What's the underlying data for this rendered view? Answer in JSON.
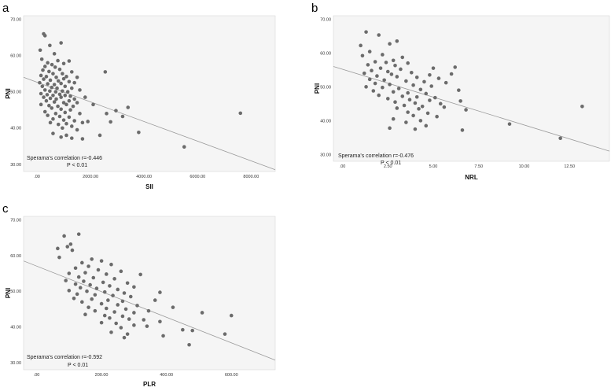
{
  "chart_data": [
    {
      "type": "scatter",
      "panel": "a",
      "xlabel": "SII",
      "ylabel": "PNI",
      "xlim": [
        -500,
        8900
      ],
      "ylim": [
        28,
        71
      ],
      "xticks": [
        0,
        2000,
        4000,
        6000,
        8000
      ],
      "xtick_labels": [
        ".00",
        "2000.00",
        "4000.00",
        "6000.00",
        "8000.00"
      ],
      "yticks": [
        30,
        40,
        50,
        60,
        70
      ],
      "ytick_labels": [
        "30.00",
        "40.00",
        "50.00",
        "60.00",
        "70.00"
      ],
      "fit_line": [
        [
          -500,
          54.0
        ],
        [
          8900,
          28.5
        ]
      ],
      "annotation": [
        "Sperama's correlation r=-0.446",
        "P < 0.01"
      ],
      "points": [
        [
          250,
          66
        ],
        [
          300,
          65.5
        ],
        [
          900,
          63.5
        ],
        [
          480,
          62.8
        ],
        [
          120,
          61.5
        ],
        [
          650,
          60.5
        ],
        [
          180,
          59
        ],
        [
          780,
          58.6
        ],
        [
          1200,
          58.5
        ],
        [
          400,
          58
        ],
        [
          560,
          57.5
        ],
        [
          1000,
          57.8
        ],
        [
          300,
          57
        ],
        [
          680,
          56.8
        ],
        [
          850,
          56.2
        ],
        [
          220,
          56
        ],
        [
          450,
          55.6
        ],
        [
          1300,
          55.5
        ],
        [
          2550,
          55.5
        ],
        [
          600,
          55
        ],
        [
          950,
          55
        ],
        [
          150,
          54.5
        ],
        [
          350,
          54.2
        ],
        [
          720,
          54
        ],
        [
          1100,
          54.2
        ],
        [
          1500,
          54
        ],
        [
          250,
          53.5
        ],
        [
          500,
          53.2
        ],
        [
          800,
          53
        ],
        [
          1000,
          53.6
        ],
        [
          1200,
          52.8
        ],
        [
          100,
          52.5
        ],
        [
          400,
          52.2
        ],
        [
          650,
          52
        ],
        [
          900,
          52.3
        ],
        [
          1400,
          52.5
        ],
        [
          200,
          51.5
        ],
        [
          550,
          51.2
        ],
        [
          750,
          51
        ],
        [
          1050,
          51.5
        ],
        [
          1300,
          51
        ],
        [
          300,
          50.5
        ],
        [
          480,
          50.2
        ],
        [
          700,
          50
        ],
        [
          950,
          50.2
        ],
        [
          1150,
          50
        ],
        [
          1600,
          50.5
        ],
        [
          150,
          49.5
        ],
        [
          380,
          49.2
        ],
        [
          600,
          49
        ],
        [
          850,
          49.3
        ],
        [
          1050,
          49
        ],
        [
          1250,
          48.8
        ],
        [
          250,
          48.5
        ],
        [
          500,
          48.2
        ],
        [
          720,
          48
        ],
        [
          900,
          48.5
        ],
        [
          1400,
          48
        ],
        [
          1800,
          48.5
        ],
        [
          350,
          47.5
        ],
        [
          650,
          47.2
        ],
        [
          1000,
          47
        ],
        [
          1200,
          47.5
        ],
        [
          1500,
          47
        ],
        [
          150,
          46.5
        ],
        [
          450,
          46.2
        ],
        [
          780,
          46
        ],
        [
          1100,
          46.5
        ],
        [
          1350,
          46
        ],
        [
          2100,
          46.5
        ],
        [
          3400,
          45.7
        ],
        [
          550,
          45.5
        ],
        [
          900,
          45.2
        ],
        [
          1250,
          45
        ],
        [
          2950,
          44.8
        ],
        [
          7600,
          44.1
        ],
        [
          300,
          44.5
        ],
        [
          700,
          44
        ],
        [
          1050,
          44.3
        ],
        [
          1600,
          44
        ],
        [
          2600,
          44
        ],
        [
          400,
          43.5
        ],
        [
          850,
          43.2
        ],
        [
          1200,
          43
        ],
        [
          3200,
          43.2
        ],
        [
          600,
          42.5
        ],
        [
          1000,
          42.2
        ],
        [
          1400,
          42
        ],
        [
          1900,
          41.8
        ],
        [
          2750,
          41.7
        ],
        [
          500,
          41.5
        ],
        [
          800,
          41
        ],
        [
          1100,
          41.2
        ],
        [
          1700,
          41.5
        ],
        [
          1300,
          40.5
        ],
        [
          950,
          40
        ],
        [
          1500,
          39.5
        ],
        [
          3800,
          38.8
        ],
        [
          600,
          38.5
        ],
        [
          1100,
          38
        ],
        [
          2350,
          38
        ],
        [
          900,
          37.5
        ],
        [
          1300,
          37.2
        ],
        [
          1700,
          37
        ],
        [
          5500,
          34.8
        ]
      ]
    },
    {
      "type": "scatter",
      "panel": "b",
      "xlabel": "NRL",
      "ylabel": "PNI",
      "xlim": [
        -0.5,
        14.7
      ],
      "ylim": [
        28,
        71
      ],
      "xticks": [
        0,
        2.5,
        5,
        7.5,
        10,
        12.5
      ],
      "xtick_labels": [
        ".00",
        "2.50",
        "5.00",
        "7.50",
        "10.00",
        "12.50"
      ],
      "yticks": [
        30,
        40,
        50,
        60,
        70
      ],
      "ytick_labels": [
        "30.00",
        "40.00",
        "50.00",
        "60.00",
        "70.00"
      ],
      "fit_line": [
        [
          -0.5,
          56.0
        ],
        [
          14.7,
          31.0
        ]
      ],
      "annotation": [
        "Sperama's correlation r=-0.476",
        "P < 0.01"
      ],
      "points": [
        [
          1.3,
          66.2
        ],
        [
          2.0,
          65.3
        ],
        [
          3.0,
          63.5
        ],
        [
          2.6,
          62.7
        ],
        [
          1.0,
          62.2
        ],
        [
          1.5,
          60.4
        ],
        [
          2.2,
          59.5
        ],
        [
          3.3,
          58.7
        ],
        [
          1.1,
          59.2
        ],
        [
          2.8,
          57.8
        ],
        [
          1.8,
          57.4
        ],
        [
          2.4,
          57.2
        ],
        [
          3.6,
          57
        ],
        [
          1.4,
          56.5
        ],
        [
          2.9,
          56.3
        ],
        [
          6.2,
          55.8
        ],
        [
          2.1,
          55.5
        ],
        [
          3.2,
          55.2
        ],
        [
          5.0,
          55.5
        ],
        [
          1.6,
          54.8
        ],
        [
          2.5,
          54.5
        ],
        [
          3.8,
          54.2
        ],
        [
          1.2,
          54
        ],
        [
          2.7,
          53.7
        ],
        [
          4.8,
          53.5
        ],
        [
          6.0,
          53.8
        ],
        [
          1.9,
          53.2
        ],
        [
          3.0,
          53
        ],
        [
          4.1,
          52.8
        ],
        [
          5.3,
          52.5
        ],
        [
          1.5,
          52.2
        ],
        [
          2.3,
          52
        ],
        [
          3.5,
          51.7
        ],
        [
          4.5,
          51.5
        ],
        [
          5.7,
          51.2
        ],
        [
          1.8,
          51
        ],
        [
          2.6,
          50.7
        ],
        [
          3.9,
          50.5
        ],
        [
          4.9,
          50.2
        ],
        [
          1.3,
          50
        ],
        [
          2.2,
          49.8
        ],
        [
          3.1,
          49.5
        ],
        [
          4.3,
          49.2
        ],
        [
          6.4,
          49
        ],
        [
          1.7,
          48.8
        ],
        [
          2.8,
          48.5
        ],
        [
          3.6,
          48.2
        ],
        [
          4.6,
          48
        ],
        [
          2.0,
          47.5
        ],
        [
          3.3,
          47.2
        ],
        [
          4.1,
          47
        ],
        [
          5.1,
          46.8
        ],
        [
          2.5,
          46.5
        ],
        [
          3.7,
          46.2
        ],
        [
          4.8,
          46
        ],
        [
          6.5,
          45.8
        ],
        [
          2.9,
          45.5
        ],
        [
          4.0,
          45.2
        ],
        [
          5.4,
          45
        ],
        [
          3.4,
          44.5
        ],
        [
          4.4,
          44.2
        ],
        [
          5.6,
          44
        ],
        [
          13.2,
          44.2
        ],
        [
          3.0,
          43.7
        ],
        [
          4.2,
          43.5
        ],
        [
          6.8,
          43.2
        ],
        [
          3.6,
          42.5
        ],
        [
          4.7,
          42.2
        ],
        [
          3.9,
          41.5
        ],
        [
          5.2,
          41.2
        ],
        [
          2.8,
          40.5
        ],
        [
          4.3,
          40
        ],
        [
          3.5,
          39.5
        ],
        [
          9.2,
          39
        ],
        [
          4.6,
          38.5
        ],
        [
          2.6,
          37.8
        ],
        [
          4.0,
          37.5
        ],
        [
          6.6,
          37.2
        ],
        [
          12.0,
          34.8
        ]
      ]
    },
    {
      "type": "scatter",
      "panel": "c",
      "xlabel": "PLR",
      "ylabel": "PNI",
      "xlim": [
        -40,
        735
      ],
      "ylim": [
        28,
        71
      ],
      "xticks": [
        0,
        200,
        400,
        600
      ],
      "xtick_labels": [
        ".00",
        "200.00",
        "400.00",
        "600.00"
      ],
      "yticks": [
        30,
        40,
        50,
        60,
        70
      ],
      "ytick_labels": [
        "30.00",
        "40.00",
        "50.00",
        "60.00",
        "70.00"
      ],
      "fit_line": [
        [
          -40,
          58.5
        ],
        [
          735,
          30.7
        ]
      ],
      "annotation": [
        "Sperama's correlation r=-0.592",
        "P < 0.01"
      ],
      "points": [
        [
          130,
          66
        ],
        [
          85,
          65.5
        ],
        [
          105,
          63.2
        ],
        [
          95,
          62.5
        ],
        [
          65,
          62
        ],
        [
          110,
          61.5
        ],
        [
          70,
          59.5
        ],
        [
          170,
          59
        ],
        [
          200,
          58.5
        ],
        [
          140,
          58
        ],
        [
          230,
          57.5
        ],
        [
          160,
          57
        ],
        [
          120,
          56.5
        ],
        [
          190,
          56
        ],
        [
          260,
          55.6
        ],
        [
          100,
          55
        ],
        [
          150,
          55.2
        ],
        [
          215,
          54.8
        ],
        [
          320,
          54.7
        ],
        [
          130,
          54
        ],
        [
          175,
          53.8
        ],
        [
          240,
          53.5
        ],
        [
          90,
          53
        ],
        [
          145,
          52.8
        ],
        [
          205,
          52.5
        ],
        [
          280,
          52.3
        ],
        [
          120,
          52
        ],
        [
          165,
          51.8
        ],
        [
          225,
          51.5
        ],
        [
          300,
          51.2
        ],
        [
          135,
          51
        ],
        [
          185,
          50.8
        ],
        [
          250,
          50.5
        ],
        [
          100,
          50.2
        ],
        [
          155,
          50
        ],
        [
          210,
          49.8
        ],
        [
          270,
          49.5
        ],
        [
          380,
          49.7
        ],
        [
          125,
          49.2
        ],
        [
          180,
          49
        ],
        [
          235,
          48.8
        ],
        [
          290,
          48.5
        ],
        [
          115,
          48
        ],
        [
          170,
          47.8
        ],
        [
          220,
          47.5
        ],
        [
          265,
          47.2
        ],
        [
          365,
          47.5
        ],
        [
          140,
          47
        ],
        [
          200,
          46.5
        ],
        [
          250,
          46.2
        ],
        [
          310,
          46
        ],
        [
          160,
          45.5
        ],
        [
          215,
          45.2
        ],
        [
          275,
          45
        ],
        [
          420,
          45.5
        ],
        [
          180,
          44.5
        ],
        [
          240,
          44.2
        ],
        [
          300,
          44
        ],
        [
          345,
          44.5
        ],
        [
          510,
          44
        ],
        [
          600,
          43.2
        ],
        [
          150,
          43.5
        ],
        [
          210,
          43.2
        ],
        [
          265,
          43
        ],
        [
          225,
          42.5
        ],
        [
          285,
          42.2
        ],
        [
          330,
          42
        ],
        [
          380,
          41.5
        ],
        [
          200,
          41.2
        ],
        [
          245,
          41
        ],
        [
          300,
          40.5
        ],
        [
          340,
          40.2
        ],
        [
          260,
          39.8
        ],
        [
          450,
          39.2
        ],
        [
          480,
          39
        ],
        [
          230,
          38.5
        ],
        [
          280,
          38
        ],
        [
          390,
          37.5
        ],
        [
          270,
          37
        ],
        [
          580,
          38
        ],
        [
          470,
          35
        ]
      ]
    }
  ]
}
